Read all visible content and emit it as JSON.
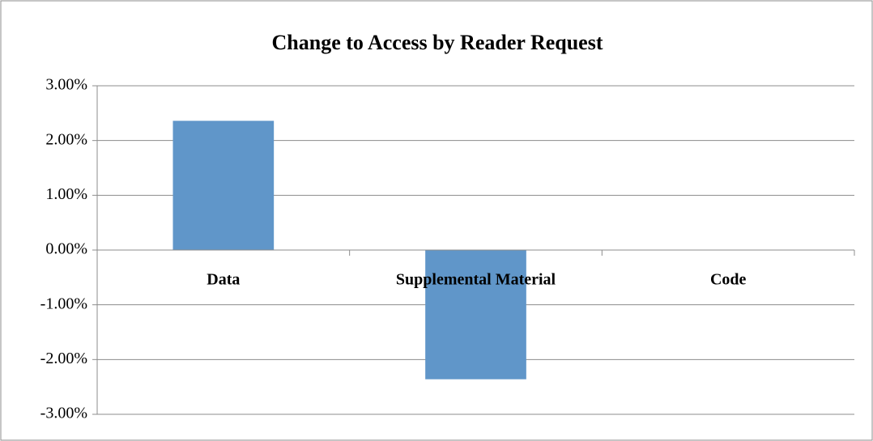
{
  "chart_data": {
    "type": "bar",
    "title": "Change to Access by Reader Request",
    "categories": [
      "Data",
      "Supplemental Material",
      "Code"
    ],
    "values": [
      2.36,
      -2.36,
      0
    ],
    "color": "#6096c9",
    "ylim": [
      -3,
      3
    ],
    "yticks": [
      {
        "value": -3,
        "label": "-3.00%"
      },
      {
        "value": -2,
        "label": "-2.00%"
      },
      {
        "value": -1,
        "label": "-1.00%"
      },
      {
        "value": 0,
        "label": "0.00%"
      },
      {
        "value": 1,
        "label": "1.00%"
      },
      {
        "value": 2,
        "label": "2.00%"
      },
      {
        "value": 3,
        "label": "3.00%"
      }
    ],
    "grid": true
  }
}
